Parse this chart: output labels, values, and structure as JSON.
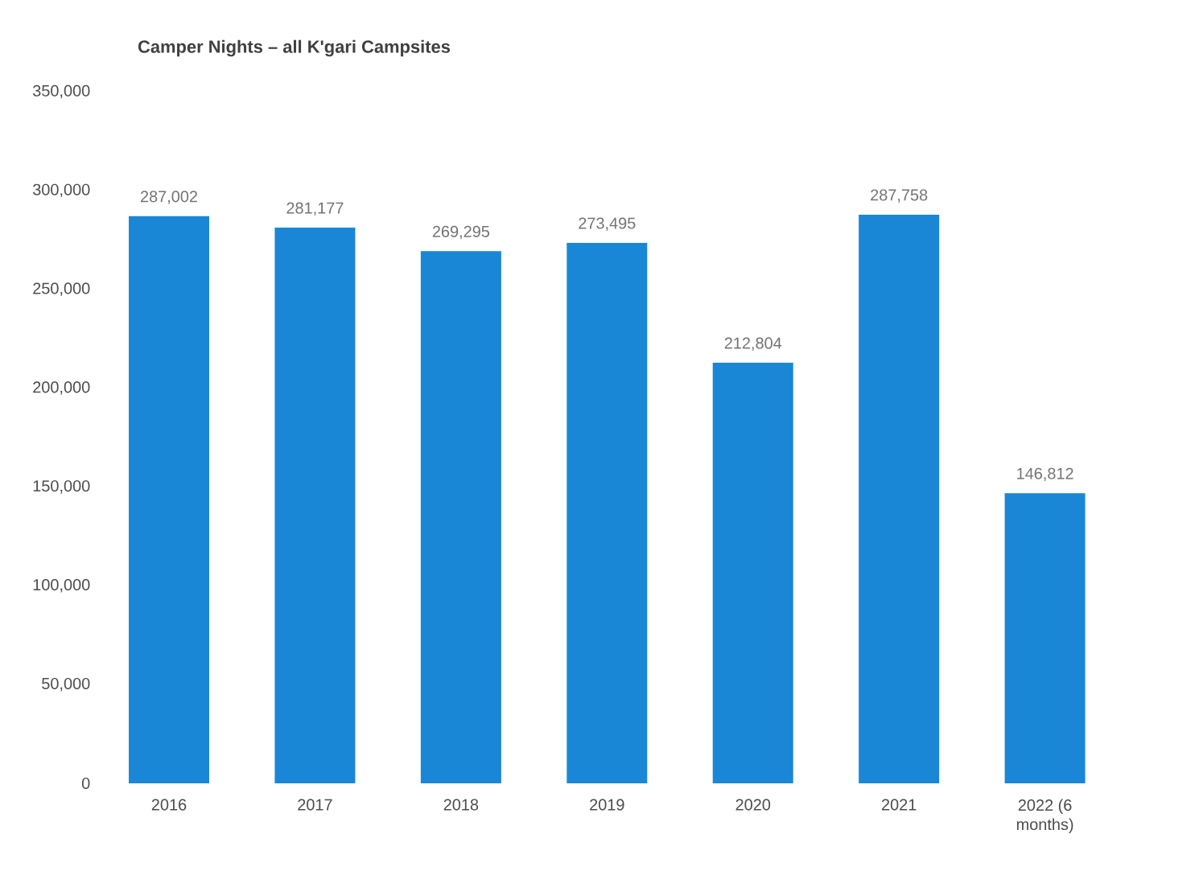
{
  "chart_data": {
    "type": "bar",
    "title": "Camper Nights – all K'gari Campsites",
    "categories": [
      "2016",
      "2017",
      "2018",
      "2019",
      "2020",
      "2021",
      "2022 (6 months)"
    ],
    "values": [
      287002,
      281177,
      269295,
      273495,
      212804,
      287758,
      146812
    ],
    "value_labels": [
      "287,002",
      "281,177",
      "269,295",
      "273,495",
      "212,804",
      "287,758",
      "146,812"
    ],
    "color": "#1a87d6",
    "ylim": [
      0,
      350000
    ],
    "yticks": [
      {
        "value": 0,
        "label": "0"
      },
      {
        "value": 50000,
        "label": "50,000"
      },
      {
        "value": 100000,
        "label": "100,000"
      },
      {
        "value": 150000,
        "label": "150,000"
      },
      {
        "value": 200000,
        "label": "200,000"
      },
      {
        "value": 250000,
        "label": "250,000"
      },
      {
        "value": 300000,
        "label": "300,000"
      },
      {
        "value": 350000,
        "label": "350,000"
      }
    ]
  }
}
